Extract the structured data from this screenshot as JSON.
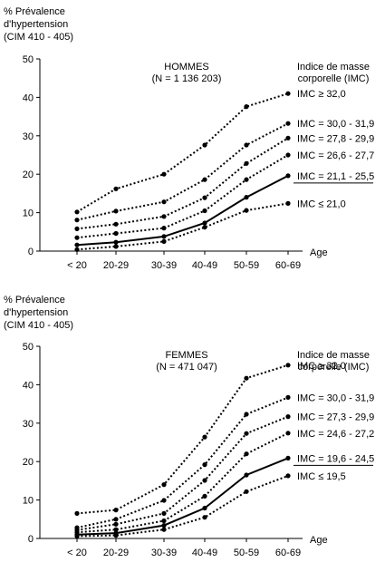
{
  "chart_data": [
    {
      "type": "line",
      "ylabel": [
        "% Prévalence",
        "d'hypertension",
        "(CIM 410 - 405)"
      ],
      "xlabel": "Age",
      "title": [
        "HOMMES",
        "(N = 1 136 203)"
      ],
      "legend_title": [
        "Indice de masse",
        "corporelle (IMC)"
      ],
      "categories": [
        "< 20",
        "20-29",
        "30-39",
        "40-49",
        "50-59",
        "60-69"
      ],
      "yticks": [
        "0",
        "10",
        "20",
        "30",
        "40",
        "50"
      ],
      "ylim": [
        0,
        50
      ],
      "series": [
        {
          "name": "IMC ≥ 32,0",
          "values": [
            10.2,
            16.2,
            20.0,
            27.6,
            37.6,
            41.0
          ],
          "style": "dotted"
        },
        {
          "name": "IMC = 30,0 - 31,9",
          "values": [
            8.1,
            10.4,
            12.8,
            18.6,
            27.6,
            33.2
          ],
          "style": "dotted"
        },
        {
          "name": "IMC = 27,8 - 29,9",
          "values": [
            5.8,
            7.0,
            9.0,
            13.9,
            22.8,
            29.4
          ],
          "style": "dotted"
        },
        {
          "name": "IMC = 26,6 - 27,7",
          "values": [
            3.5,
            4.6,
            6.0,
            10.5,
            18.6,
            25.0
          ],
          "style": "dotted"
        },
        {
          "name": "IMC = 21,1 - 25,5",
          "values": [
            1.6,
            2.3,
            3.8,
            7.3,
            14.0,
            19.6
          ],
          "style": "solid"
        },
        {
          "name": "IMC ≤ 21,0",
          "values": [
            0.4,
            1.2,
            2.5,
            6.2,
            10.6,
            12.4
          ],
          "style": "dotted"
        }
      ]
    },
    {
      "type": "line",
      "ylabel": [
        "% Prévalence",
        "d'hypertension",
        "(CIM 410 - 405)"
      ],
      "xlabel": "Age",
      "title": [
        "FEMMES",
        "(N = 471 047)"
      ],
      "legend_title": [
        "Indice de masse",
        "corporelle (IMC)"
      ],
      "categories": [
        "< 20",
        "20-29",
        "30-39",
        "40-49",
        "50-59",
        "60-69"
      ],
      "yticks": [
        "0",
        "10",
        "20",
        "30",
        "40",
        "50"
      ],
      "ylim": [
        0,
        50
      ],
      "series": [
        {
          "name": "IMC ≥ 32,0",
          "values": [
            6.5,
            7.4,
            14.0,
            26.4,
            41.7,
            45.1
          ],
          "style": "dotted"
        },
        {
          "name": "IMC = 30,0 - 31,9",
          "values": [
            2.8,
            5.0,
            9.9,
            19.2,
            32.3,
            36.7
          ],
          "style": "dotted"
        },
        {
          "name": "IMC = 27,3 - 29,9",
          "values": [
            2.2,
            3.7,
            6.5,
            15.1,
            27.3,
            31.7
          ],
          "style": "dotted"
        },
        {
          "name": "IMC = 24,6 - 27,2",
          "values": [
            1.6,
            2.3,
            4.6,
            11.0,
            22.0,
            27.4
          ],
          "style": "dotted"
        },
        {
          "name": "IMC = 19,6 - 24,5",
          "values": [
            1.0,
            1.4,
            3.4,
            7.9,
            16.5,
            20.9
          ],
          "style": "solid"
        },
        {
          "name": "IMC ≤ 19,5",
          "values": [
            0.6,
            0.8,
            2.3,
            5.5,
            12.2,
            16.3
          ],
          "style": "dotted"
        }
      ]
    }
  ]
}
